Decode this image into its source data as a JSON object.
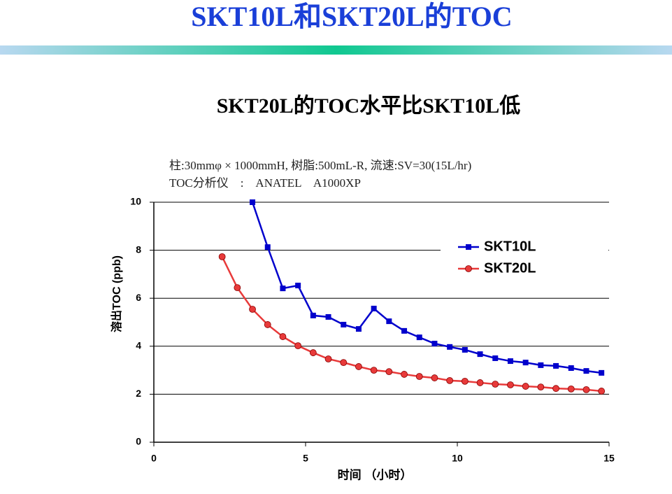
{
  "header": {
    "title": "SKT10L和SKT20L的TOC"
  },
  "chart_data": {
    "type": "line",
    "title": "SKT20L的TOC水平比SKT10L低",
    "notes": [
      "柱:30mmφ × 1000mmH, 树脂:500mL-R, 流速:SV=30(15L/hr)",
      "TOC分析仪　:　ANATEL　A1000XP"
    ],
    "x_label": "时间 （小时）",
    "y_label": "溶出TOC (ppb)",
    "xlim": [
      0,
      15
    ],
    "xticks": [
      0,
      5,
      10,
      15
    ],
    "ylim": [
      0,
      10
    ],
    "yticks": [
      0,
      2,
      4,
      6,
      8,
      10
    ],
    "grid": true,
    "legend": "upper right",
    "series": [
      {
        "name": "SKT10L",
        "color": "#0000cc",
        "marker": "square",
        "x": [
          3.25,
          3.75,
          4.25,
          4.75,
          5.25,
          5.75,
          6.25,
          6.75,
          7.25,
          7.75,
          8.25,
          8.75,
          9.25,
          9.75,
          10.25,
          10.75,
          11.25,
          11.75,
          12.25,
          12.75,
          13.25,
          13.75,
          14.25,
          14.75
        ],
        "values": [
          10.0,
          8.13,
          6.41,
          6.53,
          5.28,
          5.22,
          4.9,
          4.72,
          5.57,
          5.04,
          4.64,
          4.37,
          4.11,
          3.97,
          3.85,
          3.67,
          3.5,
          3.38,
          3.32,
          3.21,
          3.18,
          3.09,
          2.97,
          2.89
        ]
      },
      {
        "name": "SKT20L",
        "color": "#e83a3a",
        "marker": "circle",
        "x": [
          2.25,
          2.75,
          3.25,
          3.75,
          4.25,
          4.75,
          5.25,
          5.75,
          6.25,
          6.75,
          7.25,
          7.75,
          8.25,
          8.75,
          9.25,
          9.75,
          10.25,
          10.75,
          11.25,
          11.75,
          12.25,
          12.75,
          13.25,
          13.75,
          14.25,
          14.75
        ],
        "values": [
          7.73,
          6.44,
          5.54,
          4.9,
          4.4,
          4.02,
          3.73,
          3.47,
          3.32,
          3.15,
          3.0,
          2.94,
          2.83,
          2.74,
          2.68,
          2.57,
          2.54,
          2.48,
          2.42,
          2.39,
          2.33,
          2.3,
          2.24,
          2.22,
          2.19,
          2.13
        ]
      }
    ]
  }
}
